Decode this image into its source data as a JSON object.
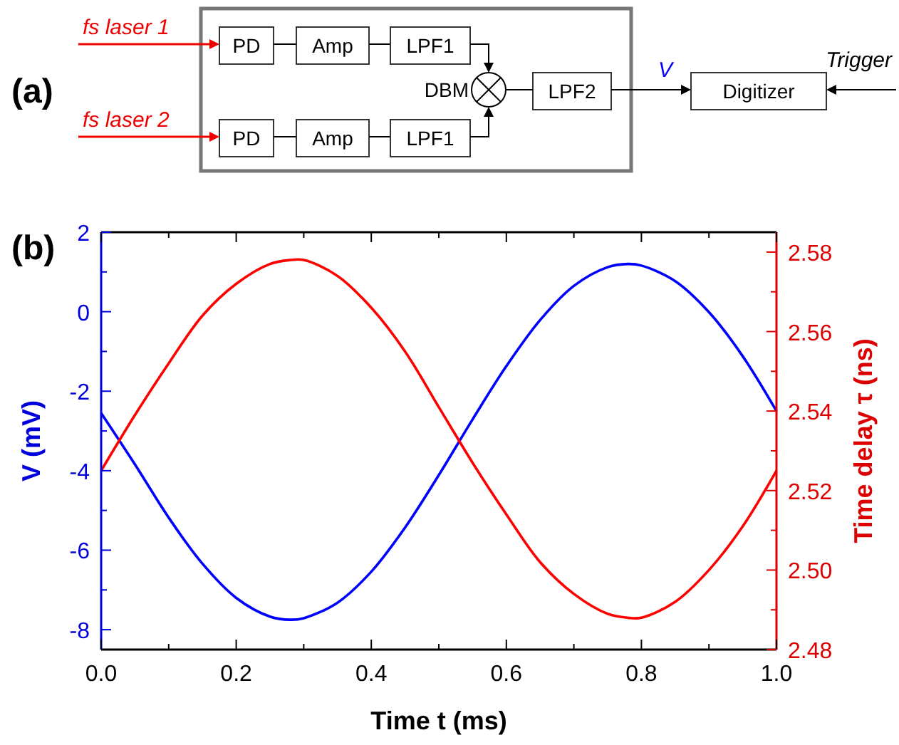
{
  "chart_data": [
    {
      "type": "other",
      "title": "(a)",
      "annotations": [
        "fs laser 1",
        "fs laser 2",
        "PD",
        "Amp",
        "LPF1",
        "PD",
        "Amp",
        "LPF1",
        "DBM",
        "LPF2",
        "V",
        "Digitizer",
        "Trigger"
      ]
    },
    {
      "type": "line",
      "title": "(b)",
      "xlabel": "Time t (ms)",
      "ylabel": "V (mV)",
      "y2label": "Time delay τ (ns)",
      "x": [
        0,
        0.05,
        0.1,
        0.15,
        0.2,
        0.25,
        0.28,
        0.3,
        0.35,
        0.4,
        0.45,
        0.5,
        0.55,
        0.6,
        0.65,
        0.7,
        0.75,
        0.78,
        0.8,
        0.85,
        0.9,
        0.95,
        1
      ],
      "xlim": [
        0,
        1
      ],
      "xticks": [
        "0.0",
        {
          "value": 0.1,
          "label": null
        },
        0.2,
        {
          "value": 0.3,
          "label": null
        },
        0.4,
        {
          "value": 0.5,
          "label": null
        },
        0.6,
        {
          "value": 0.7,
          "label": null
        },
        0.8,
        {
          "value": 0.9,
          "label": null
        },
        "1.0"
      ],
      "ylim": [
        -8.5,
        2
      ],
      "yticks": [
        -8,
        {
          "value": -7,
          "label": null
        },
        -6,
        {
          "value": -5,
          "label": null
        },
        -4,
        {
          "value": -3,
          "label": null
        },
        -2,
        {
          "value": -1,
          "label": null
        },
        0,
        {
          "value": 1,
          "label": null
        },
        2
      ],
      "y2lim": [
        2.48,
        2.585
      ],
      "y2ticks": [
        {
          "value": 2.48,
          "label": "2.48"
        },
        {
          "value": 2.49,
          "label": null
        },
        {
          "value": 2.5,
          "label": "2.50"
        },
        {
          "value": 2.51,
          "label": null
        },
        {
          "value": 2.52,
          "label": "2.52"
        },
        {
          "value": 2.53,
          "label": null
        },
        {
          "value": 2.54,
          "label": "2.54"
        },
        {
          "value": 2.55,
          "label": null
        },
        {
          "value": 2.56,
          "label": "2.56"
        },
        {
          "value": 2.57,
          "label": null
        },
        {
          "value": 2.58,
          "label": "2.58"
        }
      ],
      "series": [
        {
          "color": "#0000ff",
          "values": [
            -2.55,
            -3.84,
            -5.18,
            -6.34,
            -7.2,
            -7.67,
            -7.75,
            -7.71,
            -7.32,
            -6.54,
            -5.43,
            -4.11,
            -2.71,
            -1.37,
            -0.21,
            0.65,
            1.12,
            1.2,
            1.16,
            0.77,
            -0.01,
            -1.12,
            -2.5
          ]
        },
        {
          "color": "#ff0000",
          "axis": "y2",
          "values": [
            2.525,
            2.539,
            2.552,
            2.564,
            2.572,
            2.577,
            2.578,
            2.578,
            2.574,
            2.566,
            2.555,
            2.541,
            2.527,
            2.514,
            2.502,
            2.494,
            2.489,
            2.488,
            2.488,
            2.492,
            2.5,
            2.511,
            2.525
          ]
        }
      ]
    }
  ]
}
